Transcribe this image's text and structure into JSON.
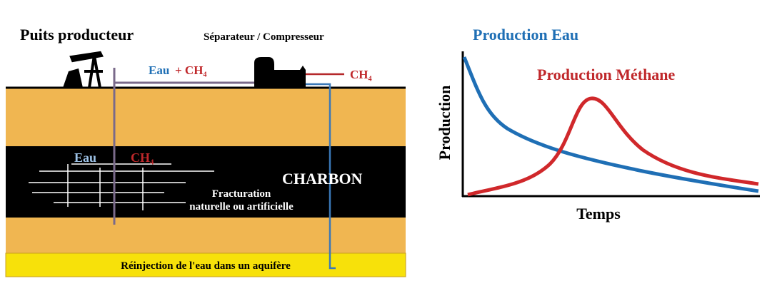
{
  "diagram": {
    "well": {
      "title": "Puits producteur"
    },
    "separator": {
      "title": "Séparateur / Compresseur"
    },
    "surface_pipe": {
      "water": "Eau",
      "gas": "+ CH₄"
    },
    "gas_outlet": "CH₄",
    "coal_seam": {
      "water": "Eau",
      "gas": "CH₄",
      "name": "CHARBON",
      "fracturing": [
        "Fracturation",
        "naturelle ou artificielle"
      ]
    },
    "aquifer": "Réinjection de l'eau dans un aquifère",
    "graph": {
      "water_curve": "Production Eau",
      "methane_curve": "Production Méthane",
      "y_axis": "Production",
      "x_axis": "Temps"
    }
  }
}
